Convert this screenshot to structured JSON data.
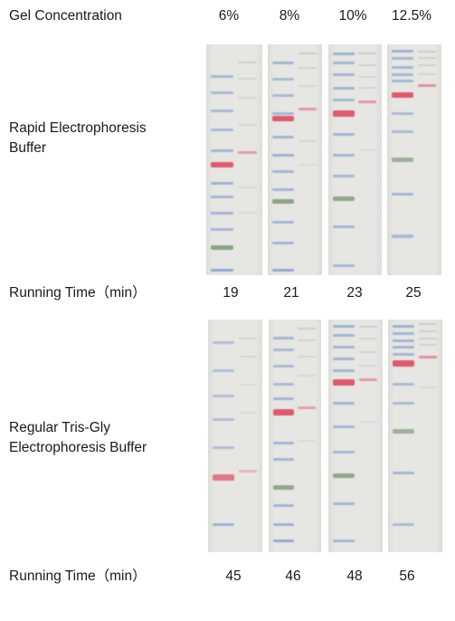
{
  "header": {
    "label": "Gel Concentration",
    "concentrations": [
      "6%",
      "8%",
      "10%",
      "12.5%"
    ]
  },
  "rows": [
    {
      "label_line1": "Rapid Electrophoresis",
      "label_line2": "Buffer",
      "time_label": "Running  Time（min）",
      "times": [
        "19",
        "21",
        "23",
        "25"
      ]
    },
    {
      "label_line1": "Regular Tris-Gly",
      "label_line2": "Electrophoresis Buffer",
      "time_label": "Running  Time（min）",
      "times": [
        "45",
        "46",
        "48",
        "56"
      ]
    }
  ],
  "colors": {
    "gel_background": "#e6e6e2",
    "marker_blue": "#6f8fcc",
    "marker_red": "#df4a62",
    "marker_green": "#6d8f6a",
    "sample_band": "#b7b7b7"
  }
}
